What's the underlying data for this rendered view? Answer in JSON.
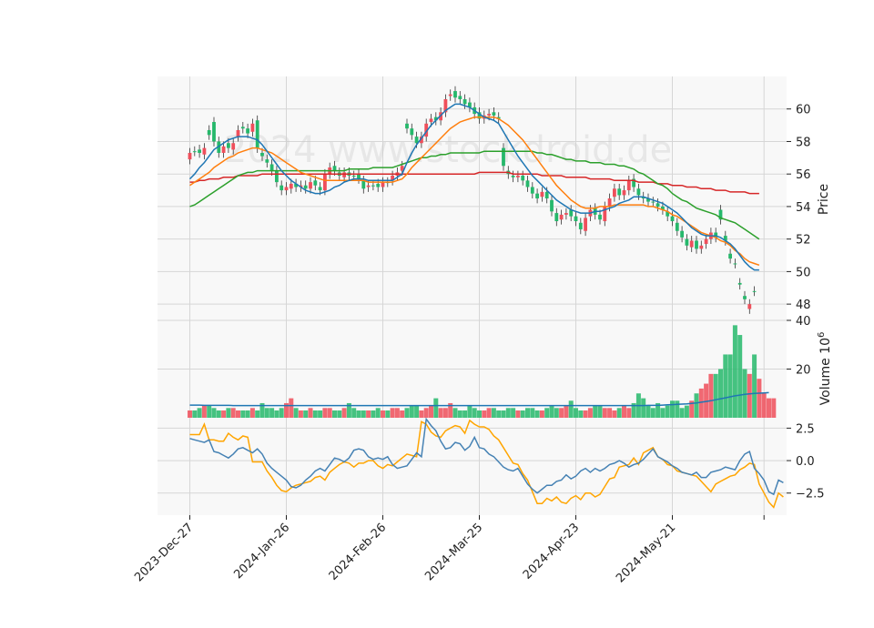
{
  "watermark": "2024 www.stockdroid.de",
  "chart_data": {
    "type": "candlestick",
    "x_tick_labels": [
      "2023-Dec-27",
      "2024-Jan-26",
      "2024-Feb-26",
      "2024-Mar-25",
      "2024-Apr-23",
      "2024-May-21"
    ],
    "panels": {
      "price": {
        "ylabel": "Price",
        "ylim": [
          47,
          62
        ],
        "yticks": [
          48,
          50,
          52,
          54,
          56,
          58,
          60
        ]
      },
      "volume": {
        "ylabel": "Volume  10",
        "ylabel_exponent": "6",
        "ylim": [
          0,
          40
        ],
        "yticks": [
          20,
          40
        ]
      },
      "oscillator": {
        "ylim": [
          -4.2,
          3.3
        ],
        "yticks": [
          2.5,
          0.0,
          -2.5
        ],
        "ytick_labels": [
          "2.5",
          "0.0",
          "−2.5"
        ]
      }
    },
    "price_closes": [
      56.9,
      57.4,
      57.5,
      57.2,
      58.7,
      59.2,
      58.0,
      57.3,
      57.9,
      57.5,
      58.3,
      58.9,
      58.8,
      58.6,
      59.3,
      57.3,
      56.9,
      56.6,
      56.2,
      55.3,
      55.0,
      55.1,
      55.4,
      55.2,
      55.3,
      55.1,
      55.6,
      55.2,
      55.0,
      56.0,
      56.5,
      56.1,
      55.8,
      56.1,
      55.9,
      56.0,
      55.6,
      55.2,
      55.3,
      55.4,
      55.2,
      55.5,
      55.6,
      55.9,
      56.2,
      59.1,
      58.8,
      58.3,
      57.9,
      58.3,
      59.2,
      59.5,
      59.3,
      59.8,
      60.8,
      61.1,
      60.8,
      60.6,
      60.4,
      60.1,
      59.8,
      59.4,
      59.6,
      59.8,
      59.5,
      57.6,
      56.2,
      55.9,
      55.8,
      55.9,
      55.6,
      55.2,
      54.8,
      54.6,
      54.9,
      54.4,
      53.6,
      53.2,
      53.5,
      53.8,
      53.4,
      53.0,
      52.5,
      53.4,
      53.9,
      53.5,
      53.1,
      54.0,
      54.6,
      55.1,
      54.7,
      55.0,
      55.7,
      55.1,
      54.6,
      54.5,
      54.3,
      54.2,
      54.0,
      53.7,
      53.4,
      53.0,
      52.5,
      52.0,
      51.5,
      51.9,
      51.4,
      51.7,
      52.0,
      52.4,
      53.8,
      52.2,
      51.1,
      50.5,
      49.3,
      48.5,
      47.7,
      48.8,
      48.4
    ],
    "price_opens": [
      57.3,
      57.4,
      57.3,
      57.6,
      58.4,
      58.0,
      57.3,
      57.7,
      57.6,
      57.9,
      58.7,
      58.8,
      58.5,
      59.1,
      57.6,
      57.1,
      56.7,
      56.2,
      55.5,
      55.0,
      55.2,
      55.4,
      55.2,
      55.3,
      55.1,
      55.5,
      55.3,
      55.0,
      56.0,
      56.4,
      56.2,
      55.9,
      56.1,
      55.9,
      55.9,
      55.7,
      55.1,
      55.3,
      55.3,
      55.2,
      55.5,
      55.5,
      55.9,
      56.1,
      56.5,
      58.8,
      58.4,
      57.9,
      58.3,
      59.1,
      59.4,
      59.3,
      59.8,
      60.6,
      60.9,
      60.7,
      60.6,
      60.3,
      60.1,
      59.7,
      59.4,
      59.6,
      59.7,
      59.6,
      59.4,
      56.5,
      56.0,
      55.8,
      55.9,
      55.6,
      55.2,
      54.8,
      54.5,
      54.9,
      54.5,
      53.7,
      53.1,
      53.5,
      53.6,
      53.4,
      53.1,
      52.6,
      53.3,
      53.8,
      53.5,
      53.2,
      54.0,
      54.5,
      55.1,
      54.7,
      55.0,
      55.6,
      55.2,
      54.7,
      54.5,
      54.3,
      54.3,
      54.0,
      53.8,
      53.4,
      53.1,
      52.5,
      52.1,
      51.6,
      51.9,
      51.4,
      51.6,
      52.0,
      52.4,
      52.1,
      53.2,
      51.9,
      50.8,
      50.5,
      49.2,
      48.3,
      48.0,
      48.8
    ],
    "ema_fast": [
      55.7,
      56.0,
      56.4,
      56.7,
      57.1,
      57.5,
      57.7,
      57.9,
      58.1,
      58.2,
      58.3,
      58.3,
      58.3,
      58.2,
      58.1,
      57.8,
      57.4,
      57.0,
      56.6,
      56.2,
      55.9,
      55.6,
      55.4,
      55.2,
      55.0,
      54.9,
      54.8,
      54.8,
      54.9,
      55.0,
      55.2,
      55.3,
      55.5,
      55.6,
      55.7,
      55.7,
      55.7,
      55.6,
      55.6,
      55.6,
      55.6,
      55.6,
      55.6,
      55.8,
      56.0,
      56.7,
      57.3,
      57.8,
      58.2,
      58.6,
      59.0,
      59.3,
      59.6,
      59.9,
      60.1,
      60.3,
      60.3,
      60.2,
      60.1,
      59.9,
      59.7,
      59.5,
      59.4,
      59.3,
      59.1,
      58.6,
      58.1,
      57.6,
      57.1,
      56.7,
      56.3,
      55.9,
      55.6,
      55.3,
      55.0,
      54.7,
      54.4,
      54.2,
      54.0,
      53.8,
      53.7,
      53.6,
      53.6,
      53.6,
      53.7,
      53.7,
      53.8,
      53.9,
      54.0,
      54.2,
      54.3,
      54.4,
      54.6,
      54.6,
      54.6,
      54.5,
      54.4,
      54.3,
      54.2,
      54.0,
      53.8,
      53.6,
      53.3,
      53.0,
      52.7,
      52.5,
      52.3,
      52.2,
      52.2,
      52.2,
      52.1,
      51.9,
      51.7,
      51.4,
      51.0,
      50.6,
      50.3,
      50.1,
      50.1
    ],
    "ema_mid": [
      55.3,
      55.5,
      55.7,
      55.9,
      56.1,
      56.4,
      56.6,
      56.8,
      57.0,
      57.1,
      57.3,
      57.4,
      57.5,
      57.6,
      57.6,
      57.5,
      57.4,
      57.3,
      57.1,
      56.9,
      56.7,
      56.5,
      56.3,
      56.1,
      56.0,
      55.9,
      55.8,
      55.7,
      55.6,
      55.6,
      55.6,
      55.6,
      55.6,
      55.6,
      55.6,
      55.6,
      55.6,
      55.5,
      55.5,
      55.5,
      55.5,
      55.5,
      55.5,
      55.6,
      55.7,
      56.0,
      56.4,
      56.7,
      57.0,
      57.3,
      57.6,
      57.9,
      58.2,
      58.5,
      58.8,
      59.0,
      59.2,
      59.3,
      59.4,
      59.5,
      59.5,
      59.5,
      59.5,
      59.5,
      59.4,
      59.2,
      59.0,
      58.7,
      58.4,
      58.1,
      57.7,
      57.3,
      56.9,
      56.5,
      56.1,
      55.7,
      55.3,
      55.0,
      54.7,
      54.4,
      54.2,
      54.0,
      53.9,
      53.9,
      53.9,
      54.0,
      54.0,
      54.0,
      54.1,
      54.1,
      54.1,
      54.1,
      54.1,
      54.1,
      54.1,
      54.0,
      54.0,
      53.9,
      53.8,
      53.7,
      53.5,
      53.4,
      53.2,
      53.0,
      52.8,
      52.6,
      52.4,
      52.3,
      52.2,
      52.1,
      51.9,
      51.8,
      51.6,
      51.3,
      51.1,
      50.8,
      50.6,
      50.5,
      50.4
    ],
    "sma_long1": [
      54.0,
      54.1,
      54.3,
      54.5,
      54.7,
      54.9,
      55.1,
      55.3,
      55.5,
      55.7,
      55.9,
      56.0,
      56.1,
      56.1,
      56.2,
      56.2,
      56.2,
      56.2,
      56.2,
      56.2,
      56.2,
      56.2,
      56.2,
      56.2,
      56.2,
      56.2,
      56.2,
      56.2,
      56.2,
      56.2,
      56.2,
      56.2,
      56.2,
      56.3,
      56.3,
      56.3,
      56.3,
      56.3,
      56.4,
      56.4,
      56.4,
      56.4,
      56.4,
      56.5,
      56.6,
      56.7,
      56.8,
      56.9,
      57.0,
      57.0,
      57.1,
      57.1,
      57.2,
      57.2,
      57.3,
      57.3,
      57.3,
      57.3,
      57.3,
      57.3,
      57.3,
      57.4,
      57.4,
      57.4,
      57.4,
      57.4,
      57.4,
      57.4,
      57.4,
      57.4,
      57.4,
      57.4,
      57.3,
      57.3,
      57.2,
      57.2,
      57.1,
      57.0,
      56.9,
      56.9,
      56.8,
      56.8,
      56.8,
      56.7,
      56.7,
      56.7,
      56.6,
      56.6,
      56.6,
      56.5,
      56.5,
      56.4,
      56.3,
      56.1,
      56.0,
      55.8,
      55.6,
      55.4,
      55.3,
      55.1,
      54.8,
      54.6,
      54.4,
      54.3,
      54.1,
      53.9,
      53.8,
      53.7,
      53.6,
      53.5,
      53.3,
      53.2,
      53.1,
      53.0,
      52.8,
      52.6,
      52.4,
      52.2,
      52.0
    ],
    "sma_long2": [
      55.5,
      55.5,
      55.6,
      55.6,
      55.7,
      55.7,
      55.7,
      55.8,
      55.8,
      55.8,
      55.9,
      55.9,
      55.9,
      55.9,
      55.9,
      56.0,
      56.0,
      56.0,
      56.0,
      56.0,
      56.0,
      56.0,
      56.0,
      56.0,
      56.0,
      56.0,
      56.0,
      56.0,
      56.0,
      56.0,
      56.0,
      56.0,
      56.0,
      56.0,
      56.0,
      56.0,
      56.0,
      56.0,
      56.0,
      56.0,
      56.0,
      56.0,
      56.0,
      56.0,
      56.0,
      56.0,
      56.0,
      56.0,
      56.0,
      56.0,
      56.0,
      56.0,
      56.0,
      56.0,
      56.0,
      56.0,
      56.0,
      56.0,
      56.0,
      56.0,
      56.1,
      56.1,
      56.1,
      56.1,
      56.1,
      56.1,
      56.1,
      56.0,
      56.0,
      56.0,
      56.0,
      56.0,
      56.0,
      55.9,
      55.9,
      55.9,
      55.9,
      55.9,
      55.8,
      55.8,
      55.8,
      55.8,
      55.8,
      55.7,
      55.7,
      55.7,
      55.7,
      55.7,
      55.6,
      55.6,
      55.6,
      55.6,
      55.6,
      55.5,
      55.5,
      55.5,
      55.5,
      55.4,
      55.4,
      55.4,
      55.3,
      55.3,
      55.3,
      55.2,
      55.2,
      55.2,
      55.1,
      55.1,
      55.1,
      55.0,
      55.0,
      55.0,
      54.9,
      54.9,
      54.9,
      54.9,
      54.8,
      54.8,
      54.8
    ],
    "volumes": [
      3,
      3,
      4,
      5,
      5,
      4,
      3,
      3,
      4,
      4,
      3,
      3,
      3,
      4,
      3,
      6,
      4,
      4,
      3,
      4,
      6,
      8,
      4,
      3,
      3,
      4,
      3,
      3,
      4,
      4,
      3,
      3,
      4,
      6,
      4,
      3,
      3,
      3,
      3,
      4,
      3,
      3,
      4,
      4,
      3,
      4,
      5,
      5,
      3,
      4,
      5,
      8,
      4,
      4,
      6,
      4,
      3,
      3,
      5,
      4,
      3,
      3,
      4,
      4,
      3,
      3,
      4,
      4,
      3,
      3,
      4,
      4,
      3,
      3,
      4,
      5,
      4,
      4,
      5,
      7,
      4,
      3,
      3,
      4,
      5,
      5,
      4,
      4,
      3,
      4,
      5,
      4,
      6,
      10,
      8,
      5,
      4,
      6,
      4,
      5,
      7,
      7,
      4,
      5,
      7,
      10,
      12,
      14,
      18,
      18,
      20,
      26,
      26,
      38,
      34,
      20,
      18,
      26,
      16,
      10,
      8,
      8
    ],
    "volume_ma": [
      5.2,
      5.2,
      5.2,
      5.1,
      5.1,
      5.1,
      5.1,
      5.1,
      5.1,
      5.0,
      5.0,
      5.0,
      5.0,
      5.0,
      5.0,
      5.0,
      5.0,
      5.0,
      5.0,
      5.0,
      5.0,
      5.0,
      5.0,
      5.0,
      5.0,
      5.0,
      5.0,
      5.0,
      5.0,
      5.0,
      5.0,
      5.0,
      5.0,
      5.0,
      5.0,
      5.0,
      5.0,
      5.0,
      5.0,
      5.0,
      5.0,
      5.0,
      5.0,
      5.0,
      5.0,
      5.0,
      5.0,
      5.0,
      5.0,
      5.0,
      5.0,
      5.0,
      5.0,
      5.0,
      5.0,
      5.0,
      5.0,
      5.0,
      5.0,
      5.0,
      5.0,
      5.0,
      5.0,
      5.0,
      5.0,
      5.0,
      5.0,
      5.0,
      5.0,
      5.0,
      5.0,
      5.0,
      5.0,
      5.0,
      5.0,
      5.0,
      5.0,
      5.0,
      5.0,
      5.0,
      5.0,
      5.0,
      5.0,
      5.0,
      5.0,
      5.0,
      5.0,
      5.0,
      5.0,
      5.0,
      5.0,
      5.0,
      5.0,
      5.0,
      5.0,
      5.1,
      5.1,
      5.1,
      5.2,
      5.3,
      5.4,
      5.5,
      5.6,
      5.7,
      5.9,
      6.1,
      6.4,
      6.7,
      7.0,
      7.4,
      7.8,
      8.2,
      8.6,
      9.0,
      9.3,
      9.6,
      9.8,
      10.0,
      10.1,
      10.2,
      10.3
    ],
    "osc_blue": [
      1.7,
      1.6,
      1.5,
      1.4,
      1.6,
      0.7,
      0.6,
      0.4,
      0.2,
      0.5,
      0.9,
      1.0,
      0.8,
      0.6,
      0.9,
      0.5,
      -0.2,
      -0.6,
      -0.9,
      -1.2,
      -1.5,
      -2.0,
      -2.1,
      -1.9,
      -1.5,
      -1.2,
      -0.8,
      -0.6,
      -0.8,
      -0.3,
      0.2,
      0.1,
      -0.1,
      0.2,
      0.8,
      0.9,
      0.8,
      0.3,
      0.1,
      0.2,
      0.1,
      0.3,
      -0.3,
      -0.6,
      -0.5,
      -0.4,
      0.1,
      0.6,
      0.3,
      3.2,
      2.7,
      2.3,
      1.5,
      0.9,
      1.0,
      1.4,
      1.3,
      0.8,
      1.1,
      1.8,
      1.0,
      0.9,
      0.5,
      0.3,
      -0.1,
      -0.5,
      -0.7,
      -0.8,
      -0.6,
      -1.2,
      -1.8,
      -2.2,
      -2.5,
      -2.2,
      -1.9,
      -1.9,
      -1.6,
      -1.5,
      -1.1,
      -1.4,
      -1.2,
      -0.8,
      -0.6,
      -0.9,
      -0.6,
      -0.8,
      -0.6,
      -0.3,
      -0.2,
      0.0,
      -0.2,
      -0.5,
      -0.3,
      -0.2,
      0.1,
      0.5,
      0.9,
      0.3,
      0.1,
      -0.1,
      -0.4,
      -0.6,
      -0.9,
      -1.0,
      -1.1,
      -0.9,
      -1.3,
      -1.3,
      -0.9,
      -0.8,
      -0.7,
      -0.5,
      -0.6,
      -0.7,
      0.0,
      0.5,
      0.7,
      -0.6,
      -1.0,
      -1.5,
      -2.4,
      -2.6,
      -1.5,
      -1.7
    ],
    "osc_orange": [
      2.0,
      2.0,
      2.0,
      2.8,
      1.6,
      1.6,
      1.5,
      1.5,
      2.1,
      1.8,
      1.6,
      1.9,
      1.8,
      -0.1,
      -0.1,
      -0.1,
      -0.8,
      -1.3,
      -1.9,
      -2.3,
      -2.4,
      -2.1,
      -1.9,
      -1.8,
      -1.7,
      -1.6,
      -1.3,
      -1.2,
      -1.5,
      -0.9,
      -0.6,
      -0.3,
      -0.1,
      -0.2,
      -0.5,
      -0.2,
      -0.2,
      0.0,
      0.0,
      -0.4,
      -0.6,
      -0.3,
      -0.4,
      -0.1,
      0.2,
      0.5,
      0.4,
      0.3,
      3.0,
      2.8,
      2.2,
      1.9,
      1.8,
      2.3,
      2.5,
      2.7,
      2.6,
      2.1,
      3.1,
      2.8,
      2.6,
      2.6,
      2.4,
      1.9,
      1.6,
      1.0,
      0.4,
      -0.2,
      -0.3,
      -1.0,
      -1.5,
      -2.4,
      -3.3,
      -3.3,
      -2.9,
      -3.1,
      -2.8,
      -3.2,
      -3.3,
      -2.9,
      -2.7,
      -3.0,
      -2.5,
      -2.5,
      -2.8,
      -2.6,
      -2.0,
      -1.4,
      -1.3,
      -0.5,
      -0.4,
      -0.3,
      0.2,
      -0.3,
      0.6,
      0.8,
      1.0,
      0.3,
      0.1,
      -0.3,
      -0.4,
      -0.8,
      -0.9,
      -1.0,
      -1.1,
      -1.2,
      -1.6,
      -2.0,
      -2.4,
      -1.8,
      -1.6,
      -1.4,
      -1.2,
      -1.1,
      -0.7,
      -0.5,
      -0.2,
      -0.3,
      -1.8,
      -2.5,
      -3.2,
      -3.6,
      -2.5,
      -2.8
    ]
  },
  "colors": {
    "up": "#26b86b",
    "down": "#ef4f5b",
    "ema_fast": "#1f77b4",
    "ema_mid": "#ff7f0e",
    "sma_long1": "#2ca02c",
    "sma_long2": "#d62728",
    "volume_ma": "#1f77b4",
    "osc_blue": "#4682b4",
    "osc_orange": "#ffa500",
    "panel_bg": "#f8f8f8",
    "grid": "#d6d6d6"
  }
}
